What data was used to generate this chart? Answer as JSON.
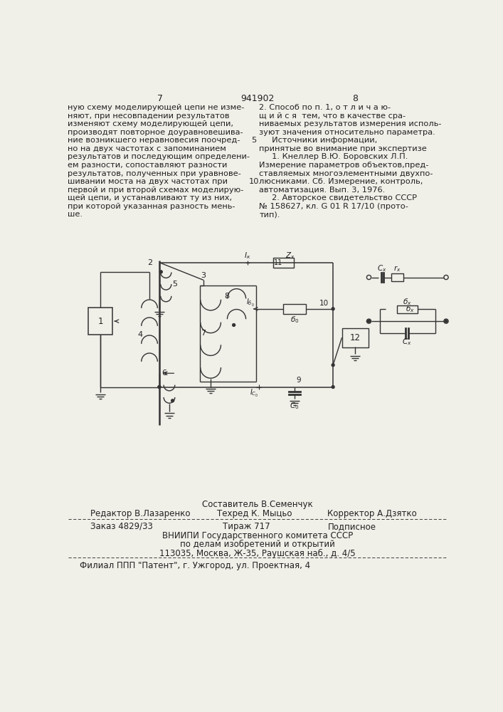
{
  "page_numbers_left": "7",
  "page_numbers_center": "941902",
  "page_numbers_right": "8",
  "left_column_text": [
    "ную схему моделирующей цепи не изме-",
    "няют, при несовпадении результатов",
    "изменяют схему моделирующей цепи,",
    "производят повторное доуравновешива-",
    "ние возникшего неравновесия поочред-",
    "но на двух частотах с запоминанием",
    "результатов и последующим определени-",
    "ем разности, сопоставляют разности",
    "результатов, полученных при уравнове-",
    "шивании моста на двух частотах при",
    "первой и при второй схемах моделирую-",
    "щей цепи, и устанавливают ту из них,",
    "при которой указанная разность мень-",
    "ше."
  ],
  "right_column_text": [
    "2. Способ по п. 1, о т л и ч а ю-",
    "щ и й с я  тем, что в качестве сра-",
    "ниваемых результатов измерения исполь-",
    "зуют значения относительно параметра.",
    "     Источники информации,",
    "принятые во внимание при экспертизе",
    "     1. Кнеллер В.Ю. Боровских Л.П.",
    "Измерение параметров объектов,пред-",
    "ставляемых многоэлементными двухпо-",
    "люсниками. Сб. Измерение, контроль,",
    "автоматизация. Вып. 3, 1976.",
    "     2. Авторское свидетельство СССР",
    "№ 158627, кл. G 01 R 17/10 (прото-",
    "тип)."
  ],
  "line_num_5": "5",
  "line_num_10": "10",
  "footer_composer": "Составитель В.Семенчук",
  "footer_editor": "Редактор В.Лазаренко",
  "footer_techred": "Техред К. Мыцьо",
  "footer_corrector": "Корректор А.Дзятко",
  "footer_order": "Заказ 4829/33",
  "footer_print": "Тираж 717",
  "footer_subscription": "Подписное",
  "footer_org1": "ВНИИПИ Государственного комитета СССР",
  "footer_org2": "по делам изобретений и открытий",
  "footer_org3": "113035, Москва, Ж-35, Раушская наб., д. 4/5",
  "footer_branch": "Филиал ППП \"Патент\", г. Ужгород, ул. Проектная, 4",
  "bg_color": "#f0efe8",
  "text_color": "#222222",
  "line_color": "#333333"
}
